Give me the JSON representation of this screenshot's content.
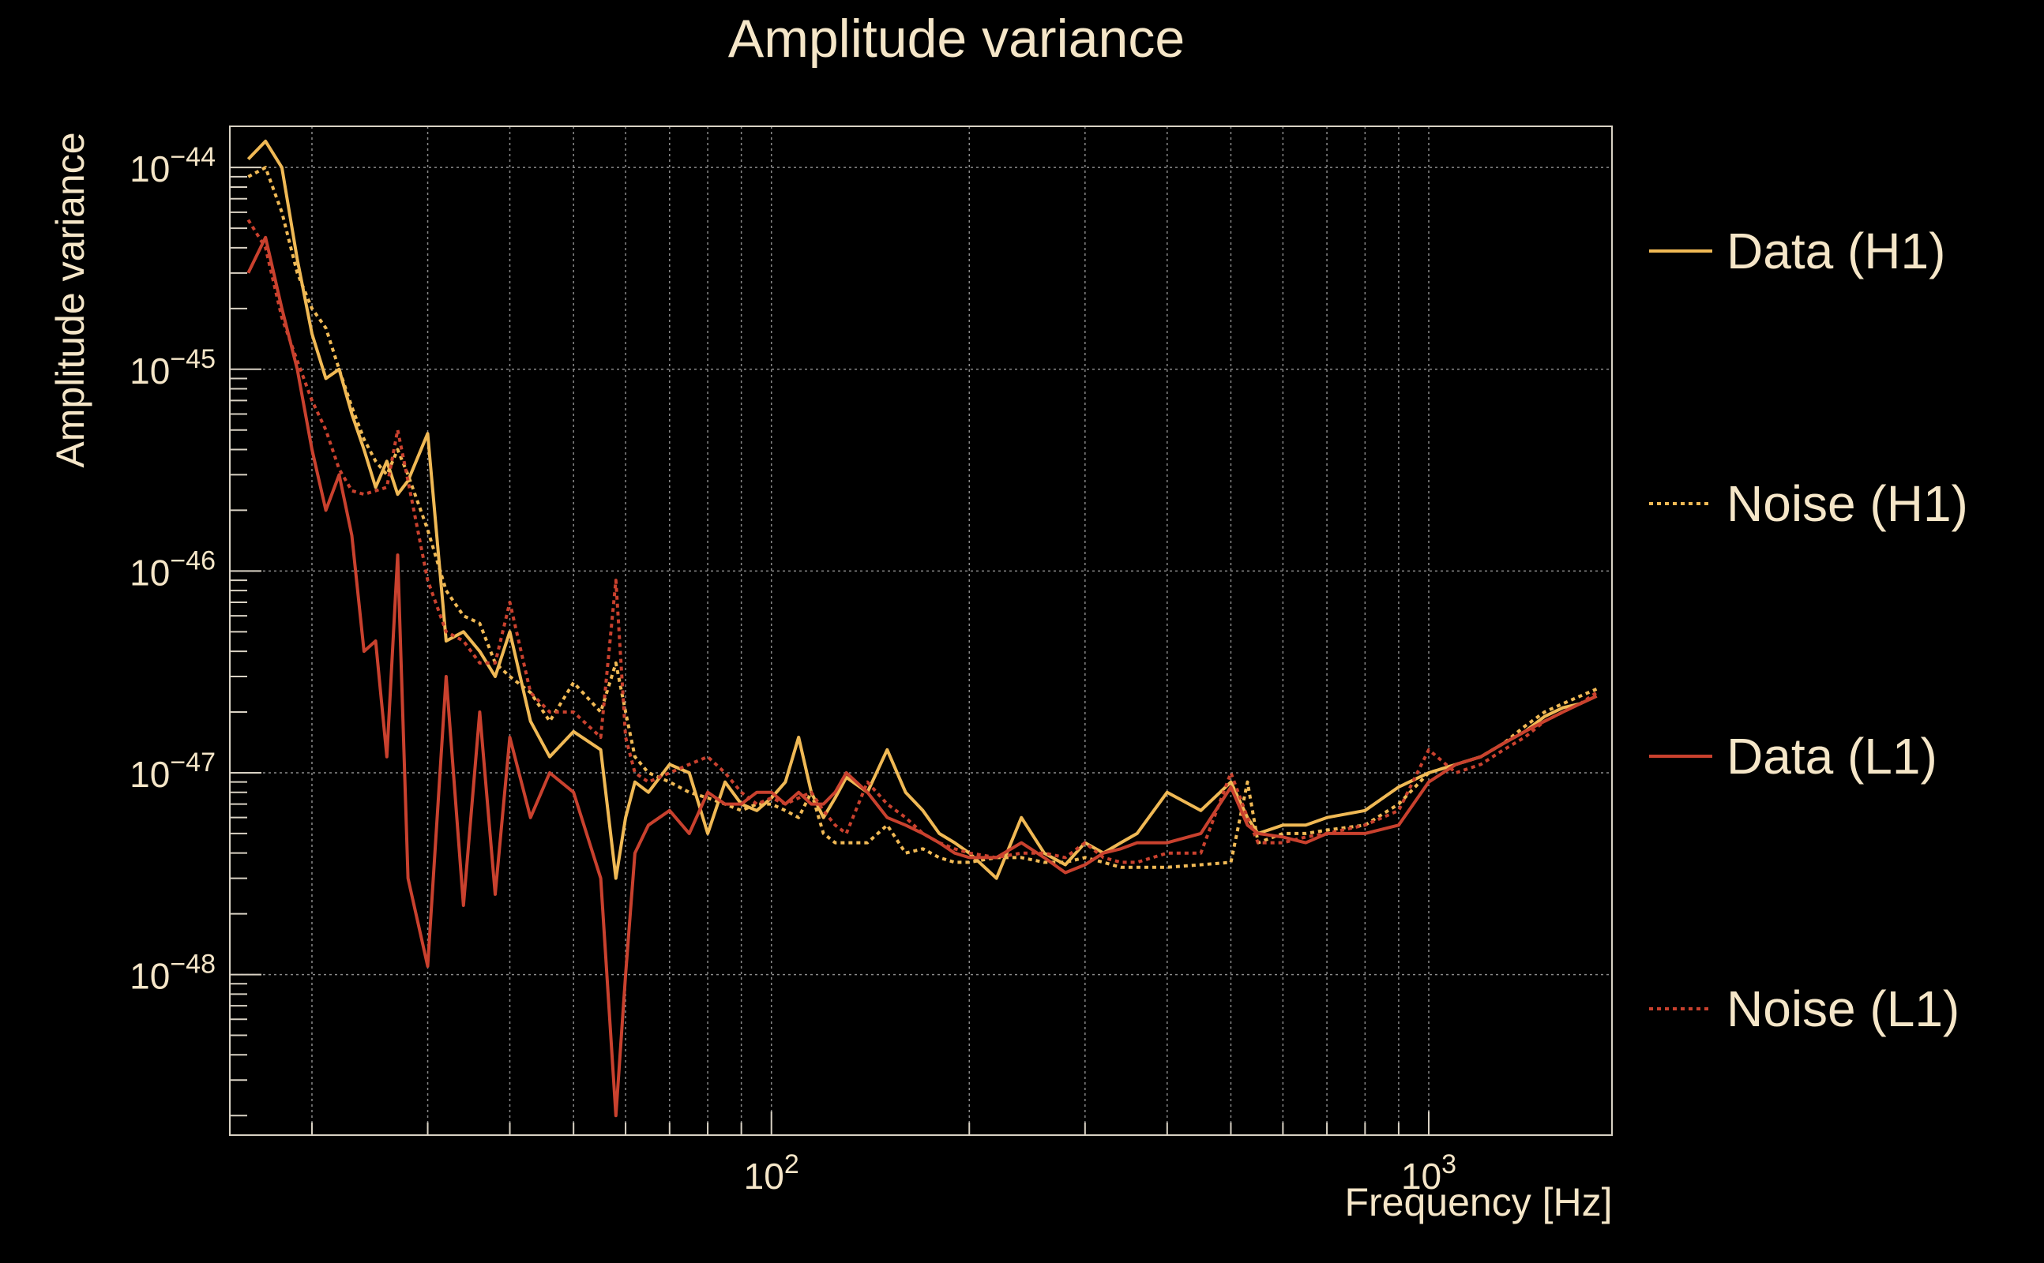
{
  "chart_data": {
    "type": "line",
    "title": "Amplitude variance",
    "xlabel": "Frequency [Hz]",
    "ylabel": "Amplitude variance",
    "xscale": "log",
    "yscale": "log",
    "xlim": [
      15,
      1900
    ],
    "ylim": [
      1.6e-49,
      1.6e-44
    ],
    "xticks": [
      {
        "value": 100,
        "base": "10",
        "exp": "2"
      },
      {
        "value": 1000,
        "base": "10",
        "exp": "3"
      }
    ],
    "yticks": [
      {
        "value": 1e-44,
        "base": "10",
        "exp": "−44"
      },
      {
        "value": 1e-45,
        "base": "10",
        "exp": "−45"
      },
      {
        "value": 1e-46,
        "base": "10",
        "exp": "−46"
      },
      {
        "value": 1e-47,
        "base": "10",
        "exp": "−47"
      },
      {
        "value": 1e-48,
        "base": "10",
        "exp": "−48"
      }
    ],
    "grid": true,
    "legend_position": "right",
    "series": [
      {
        "name": "Data (H1)",
        "color": "#f0b955",
        "dash": "solid",
        "x": [
          16,
          17,
          18,
          19,
          20,
          21,
          22,
          23,
          24,
          25,
          26,
          27,
          28,
          30,
          32,
          34,
          36,
          38,
          40,
          43,
          46,
          50,
          55,
          58,
          60,
          62,
          65,
          70,
          75,
          80,
          85,
          90,
          95,
          100,
          105,
          110,
          115,
          120,
          125,
          130,
          140,
          150,
          160,
          170,
          180,
          190,
          200,
          220,
          240,
          260,
          280,
          300,
          320,
          340,
          360,
          400,
          450,
          500,
          530,
          550,
          600,
          650,
          700,
          800,
          900,
          1000,
          1100,
          1200,
          1300,
          1400,
          1500,
          1600,
          1700,
          1800
        ],
        "y": [
          1.1e-44,
          1.35e-44,
          1e-44,
          3.5e-45,
          1.5e-45,
          9e-46,
          1e-45,
          6e-46,
          4e-46,
          2.6e-46,
          3.5e-46,
          2.4e-46,
          2.8e-46,
          4.8e-46,
          4.5e-47,
          5e-47,
          4e-47,
          3e-47,
          5e-47,
          1.8e-47,
          1.2e-47,
          1.6e-47,
          1.3e-47,
          3e-48,
          6e-48,
          9e-48,
          8e-48,
          1.1e-47,
          1e-47,
          5e-48,
          9e-48,
          7e-48,
          6.5e-48,
          7.5e-48,
          9e-48,
          1.5e-47,
          8e-48,
          6e-48,
          7.5e-48,
          9.5e-48,
          8e-48,
          1.3e-47,
          8e-48,
          6.5e-48,
          5e-48,
          4.5e-48,
          4e-48,
          3e-48,
          6e-48,
          4e-48,
          3.5e-48,
          4.5e-48,
          4e-48,
          4.5e-48,
          5e-48,
          8e-48,
          6.5e-48,
          9e-48,
          6e-48,
          5e-48,
          5.5e-48,
          5.5e-48,
          6e-48,
          6.5e-48,
          8.5e-48,
          1e-47,
          1.1e-47,
          1.2e-47,
          1.4e-47,
          1.6e-47,
          1.9e-47,
          2.1e-47,
          2.2e-47,
          2.4e-47
        ]
      },
      {
        "name": "Noise (H1)",
        "color": "#f0b955",
        "dash": "dotted",
        "x": [
          16,
          17,
          18,
          19,
          20,
          21,
          22,
          23,
          24,
          25,
          26,
          27,
          28,
          30,
          32,
          34,
          36,
          38,
          40,
          43,
          46,
          50,
          55,
          58,
          60,
          62,
          65,
          70,
          75,
          80,
          85,
          90,
          95,
          100,
          105,
          110,
          115,
          120,
          125,
          130,
          140,
          150,
          160,
          170,
          180,
          190,
          200,
          220,
          240,
          260,
          280,
          300,
          320,
          340,
          360,
          400,
          450,
          500,
          530,
          550,
          600,
          650,
          700,
          800,
          900,
          1000,
          1100,
          1200,
          1300,
          1400,
          1500,
          1600,
          1700,
          1800
        ],
        "y": [
          9e-45,
          1e-44,
          6e-45,
          3e-45,
          2e-45,
          1.6e-45,
          1e-45,
          6.5e-46,
          4.5e-46,
          3.5e-46,
          3e-46,
          4e-46,
          3e-46,
          1.6e-46,
          8e-47,
          6e-47,
          5.5e-47,
          3.5e-47,
          3e-47,
          2.5e-47,
          1.8e-47,
          2.8e-47,
          2e-47,
          3.5e-47,
          2e-47,
          1.2e-47,
          1e-47,
          9e-48,
          8e-48,
          7.5e-48,
          7e-48,
          6.5e-48,
          7e-48,
          7e-48,
          6.5e-48,
          6e-48,
          8e-48,
          5e-48,
          4.5e-48,
          4.5e-48,
          4.5e-48,
          5.5e-48,
          4e-48,
          4.2e-48,
          3.8e-48,
          3.6e-48,
          3.6e-48,
          3.8e-48,
          3.8e-48,
          3.6e-48,
          3.6e-48,
          3.8e-48,
          3.6e-48,
          3.4e-48,
          3.4e-48,
          3.4e-48,
          3.5e-48,
          3.6e-48,
          9e-48,
          4.5e-48,
          5e-48,
          5e-48,
          5.2e-48,
          5.5e-48,
          7e-48,
          1e-47,
          1.1e-47,
          1.2e-47,
          1.4e-47,
          1.7e-47,
          2e-47,
          2.2e-47,
          2.4e-47,
          2.6e-47
        ]
      },
      {
        "name": "Data (L1)",
        "color": "#c9412e",
        "dash": "solid",
        "x": [
          16,
          17,
          18,
          19,
          20,
          21,
          22,
          23,
          24,
          25,
          26,
          27,
          28,
          30,
          32,
          34,
          36,
          38,
          40,
          43,
          46,
          50,
          55,
          58,
          60,
          62,
          65,
          70,
          75,
          80,
          85,
          90,
          95,
          100,
          105,
          110,
          115,
          120,
          125,
          130,
          140,
          150,
          160,
          170,
          180,
          190,
          200,
          220,
          240,
          260,
          280,
          300,
          320,
          340,
          360,
          400,
          450,
          500,
          530,
          550,
          600,
          650,
          700,
          800,
          900,
          1000,
          1100,
          1200,
          1300,
          1400,
          1500,
          1600,
          1700,
          1800
        ],
        "y": [
          3e-45,
          4.5e-45,
          2e-45,
          1e-45,
          4e-46,
          2e-46,
          3e-46,
          1.5e-46,
          4e-47,
          4.5e-47,
          1.2e-47,
          1.2e-46,
          3e-48,
          1.1e-48,
          3e-47,
          2.2e-48,
          2e-47,
          2.5e-48,
          1.5e-47,
          6e-48,
          1e-47,
          8e-48,
          3e-48,
          2e-49,
          1e-48,
          4e-48,
          5.5e-48,
          6.5e-48,
          5e-48,
          8e-48,
          7e-48,
          7e-48,
          8e-48,
          8e-48,
          7e-48,
          8e-48,
          7e-48,
          7e-48,
          8e-48,
          1e-47,
          8e-48,
          6e-48,
          5.5e-48,
          5e-48,
          4.5e-48,
          4e-48,
          3.8e-48,
          3.8e-48,
          4.5e-48,
          3.8e-48,
          3.2e-48,
          3.5e-48,
          4e-48,
          4.2e-48,
          4.5e-48,
          4.5e-48,
          5e-48,
          8.5e-48,
          5.5e-48,
          5e-48,
          4.8e-48,
          4.5e-48,
          5e-48,
          5e-48,
          5.5e-48,
          9e-48,
          1.1e-47,
          1.2e-47,
          1.4e-47,
          1.6e-47,
          1.8e-47,
          2e-47,
          2.2e-47,
          2.4e-47
        ]
      },
      {
        "name": "Noise (L1)",
        "color": "#c9412e",
        "dash": "dotted",
        "x": [
          16,
          17,
          18,
          19,
          20,
          21,
          22,
          23,
          24,
          25,
          26,
          27,
          28,
          30,
          32,
          34,
          36,
          38,
          40,
          43,
          46,
          50,
          55,
          58,
          60,
          62,
          65,
          70,
          75,
          80,
          85,
          90,
          95,
          100,
          105,
          110,
          115,
          120,
          125,
          130,
          140,
          150,
          160,
          170,
          180,
          190,
          200,
          220,
          240,
          260,
          280,
          300,
          320,
          340,
          360,
          400,
          450,
          500,
          530,
          550,
          600,
          650,
          700,
          800,
          900,
          1000,
          1100,
          1200,
          1300,
          1400,
          1500,
          1600,
          1700,
          1800
        ],
        "y": [
          5.5e-45,
          4e-45,
          1.8e-45,
          1.1e-45,
          7e-46,
          5e-46,
          3.2e-46,
          2.5e-46,
          2.4e-46,
          2.5e-46,
          2.6e-46,
          5e-46,
          2.8e-46,
          9e-47,
          5e-47,
          4.5e-47,
          3.5e-47,
          3.5e-47,
          7e-47,
          2.5e-47,
          2e-47,
          2e-47,
          1.5e-47,
          9e-47,
          1.5e-47,
          1e-47,
          9e-48,
          1e-47,
          1.1e-47,
          1.2e-47,
          1e-47,
          8e-48,
          7e-48,
          7.5e-48,
          7e-48,
          7.5e-48,
          8e-48,
          6.5e-48,
          5.5e-48,
          5e-48,
          9e-48,
          7e-48,
          6e-48,
          5e-48,
          4.5e-48,
          4.2e-48,
          4e-48,
          3.8e-48,
          4e-48,
          4e-48,
          3.8e-48,
          4.5e-48,
          3.8e-48,
          3.6e-48,
          3.6e-48,
          4e-48,
          4e-48,
          1e-47,
          6e-48,
          4.5e-48,
          4.5e-48,
          4.8e-48,
          5e-48,
          5.5e-48,
          6.5e-48,
          1.3e-47,
          1e-47,
          1.1e-47,
          1.3e-47,
          1.5e-47,
          1.8e-47,
          2e-47,
          2.2e-47,
          2.5e-47
        ]
      }
    ]
  }
}
